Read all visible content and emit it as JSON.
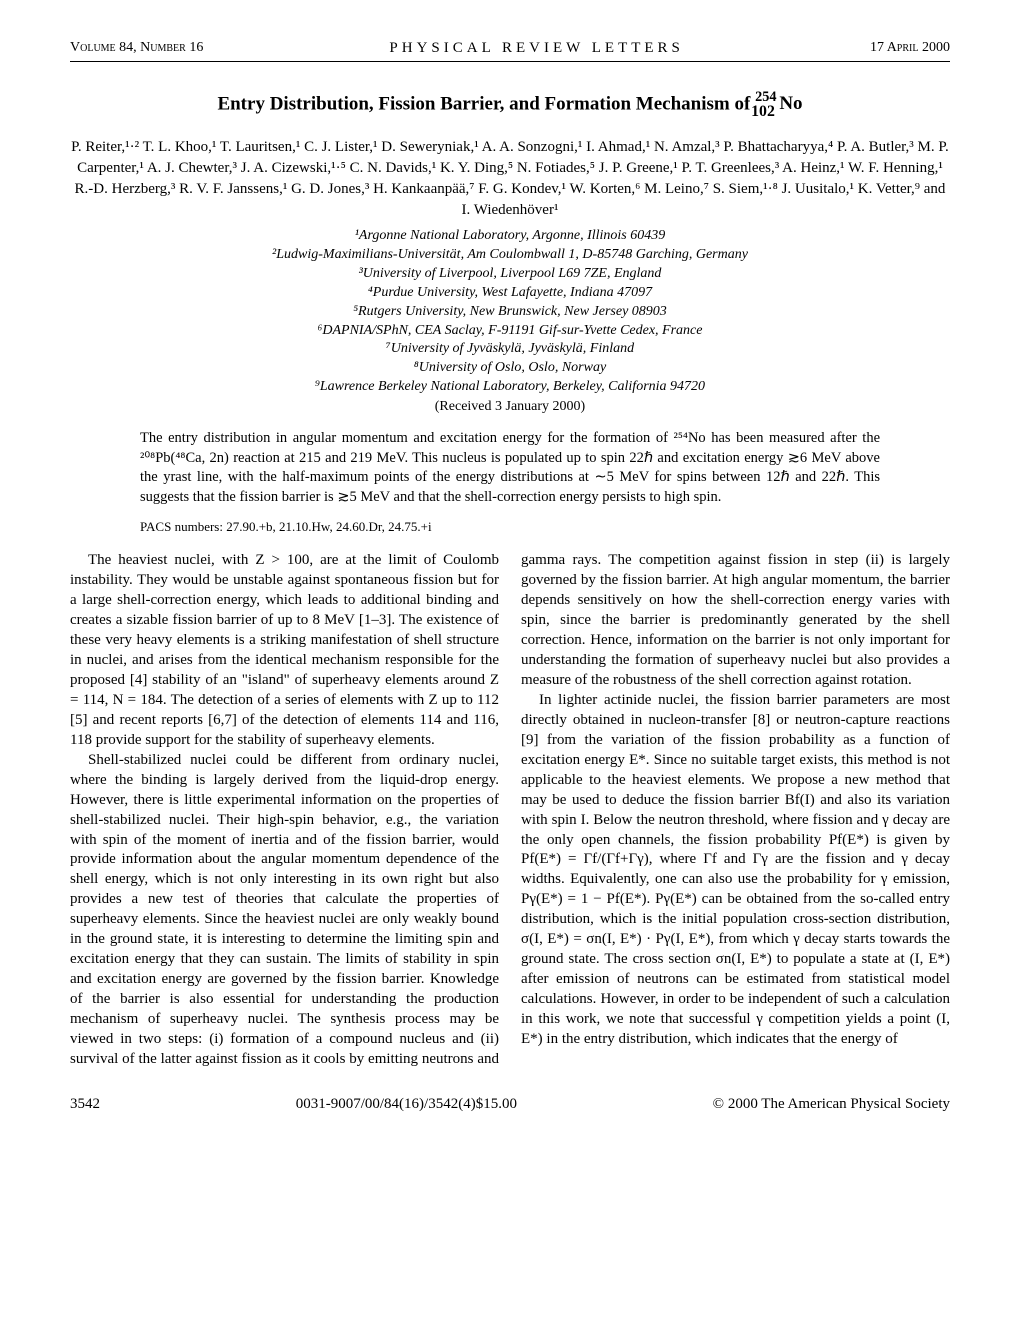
{
  "header": {
    "left": "Volume 84, Number 16",
    "center": "PHYSICAL REVIEW LETTERS",
    "right": "17 April 2000"
  },
  "title": "Entry Distribution, Fission Barrier, and Formation Mechanism of ²⁵⁴₁₀₂No",
  "authors": "P. Reiter,¹·² T. L. Khoo,¹ T. Lauritsen,¹ C. J. Lister,¹ D. Seweryniak,¹ A. A. Sonzogni,¹ I. Ahmad,¹ N. Amzal,³ P. Bhattacharyya,⁴ P. A. Butler,³ M. P. Carpenter,¹ A. J. Chewter,³ J. A. Cizewski,¹·⁵ C. N. Davids,¹ K. Y. Ding,⁵ N. Fotiades,⁵ J. P. Greene,¹ P. T. Greenlees,³ A. Heinz,¹ W. F. Henning,¹ R.-D. Herzberg,³ R. V. F. Janssens,¹ G. D. Jones,³ H. Kankaanpää,⁷ F. G. Kondev,¹ W. Korten,⁶ M. Leino,⁷ S. Siem,¹·⁸ J. Uusitalo,¹ K. Vetter,⁹ and I. Wiedenhöver¹",
  "affiliations": [
    "¹Argonne National Laboratory, Argonne, Illinois 60439",
    "²Ludwig-Maximilians-Universität, Am Coulombwall 1, D-85748 Garching, Germany",
    "³University of Liverpool, Liverpool L69 7ZE, England",
    "⁴Purdue University, West Lafayette, Indiana 47097",
    "⁵Rutgers University, New Brunswick, New Jersey 08903",
    "⁶DAPNIA/SPhN, CEA Saclay, F-91191 Gif-sur-Yvette Cedex, France",
    "⁷University of Jyväskylä, Jyväskylä, Finland",
    "⁸University of Oslo, Oslo, Norway",
    "⁹Lawrence Berkeley National Laboratory, Berkeley, California 94720"
  ],
  "received": "(Received 3 January 2000)",
  "abstract": "The entry distribution in angular momentum and excitation energy for the formation of ²⁵⁴No has been measured after the ²⁰⁸Pb(⁴⁸Ca, 2n) reaction at 215 and 219 MeV. This nucleus is populated up to spin 22ℏ and excitation energy ≳6 MeV above the yrast line, with the half-maximum points of the energy distributions at ∼5 MeV for spins between 12ℏ and 22ℏ. This suggests that the fission barrier is ≳5 MeV and that the shell-correction energy persists to high spin.",
  "pacs": "PACS numbers: 27.90.+b, 21.10.Hw, 24.60.Dr, 24.75.+i",
  "body": {
    "p1": "The heaviest nuclei, with Z > 100, are at the limit of Coulomb instability. They would be unstable against spontaneous fission but for a large shell-correction energy, which leads to additional binding and creates a sizable fission barrier of up to 8 MeV [1–3]. The existence of these very heavy elements is a striking manifestation of shell structure in nuclei, and arises from the identical mechanism responsible for the proposed [4] stability of an \"island\" of superheavy elements around Z = 114, N = 184. The detection of a series of elements with Z up to 112 [5] and recent reports [6,7] of the detection of elements 114 and 116, 118 provide support for the stability of superheavy elements.",
    "p2": "Shell-stabilized nuclei could be different from ordinary nuclei, where the binding is largely derived from the liquid-drop energy. However, there is little experimental information on the properties of shell-stabilized nuclei. Their high-spin behavior, e.g., the variation with spin of the moment of inertia and of the fission barrier, would provide information about the angular momentum dependence of the shell energy, which is not only interesting in its own right but also provides a new test of theories that calculate the properties of superheavy elements. Since the heaviest nuclei are only weakly bound in the ground state, it is interesting to determine the limiting spin and excitation energy that they can sustain. The limits of stability in spin and excitation energy are governed by the fission barrier. Knowledge of the barrier is also essential for understanding the production mechanism of superheavy nuclei. The synthesis process may be viewed in two steps: (i) formation of a compound nucleus and (ii) survival of the latter against fission as it cools by emitting neutrons and gamma rays. The competition against fission in step (ii) is largely governed by the fission barrier. At high angular momentum, the barrier depends sensitively on how the shell-correction energy varies with spin, since the barrier is predominantly generated by the shell correction. Hence, information on the barrier is not only important for understanding the formation of superheavy nuclei but also provides a measure of the robustness of the shell correction against rotation.",
    "p3": "In lighter actinide nuclei, the fission barrier parameters are most directly obtained in nucleon-transfer [8] or neutron-capture reactions [9] from the variation of the fission probability as a function of excitation energy E*. Since no suitable target exists, this method is not applicable to the heaviest elements. We propose a new method that may be used to deduce the fission barrier Bf(I) and also its variation with spin I. Below the neutron threshold, where fission and γ decay are the only open channels, the fission probability Pf(E*) is given by Pf(E*) = Γf/(Γf+Γγ), where Γf and Γγ are the fission and γ decay widths. Equivalently, one can also use the probability for γ emission, Pγ(E*) = 1 − Pf(E*). Pγ(E*) can be obtained from the so-called entry distribution, which is the initial population cross-section distribution, σ(I, E*) = σn(I, E*) · Pγ(I, E*), from which γ decay starts towards the ground state. The cross section σn(I, E*) to populate a state at (I, E*) after emission of neutrons can be estimated from statistical model calculations. However, in order to be independent of such a calculation in this work, we note that successful γ competition yields a point (I, E*) in the entry distribution, which indicates that the energy of"
  },
  "footer": {
    "page": "3542",
    "center": "0031-9007/00/84(16)/3542(4)$15.00",
    "right": "© 2000 The American Physical Society"
  }
}
